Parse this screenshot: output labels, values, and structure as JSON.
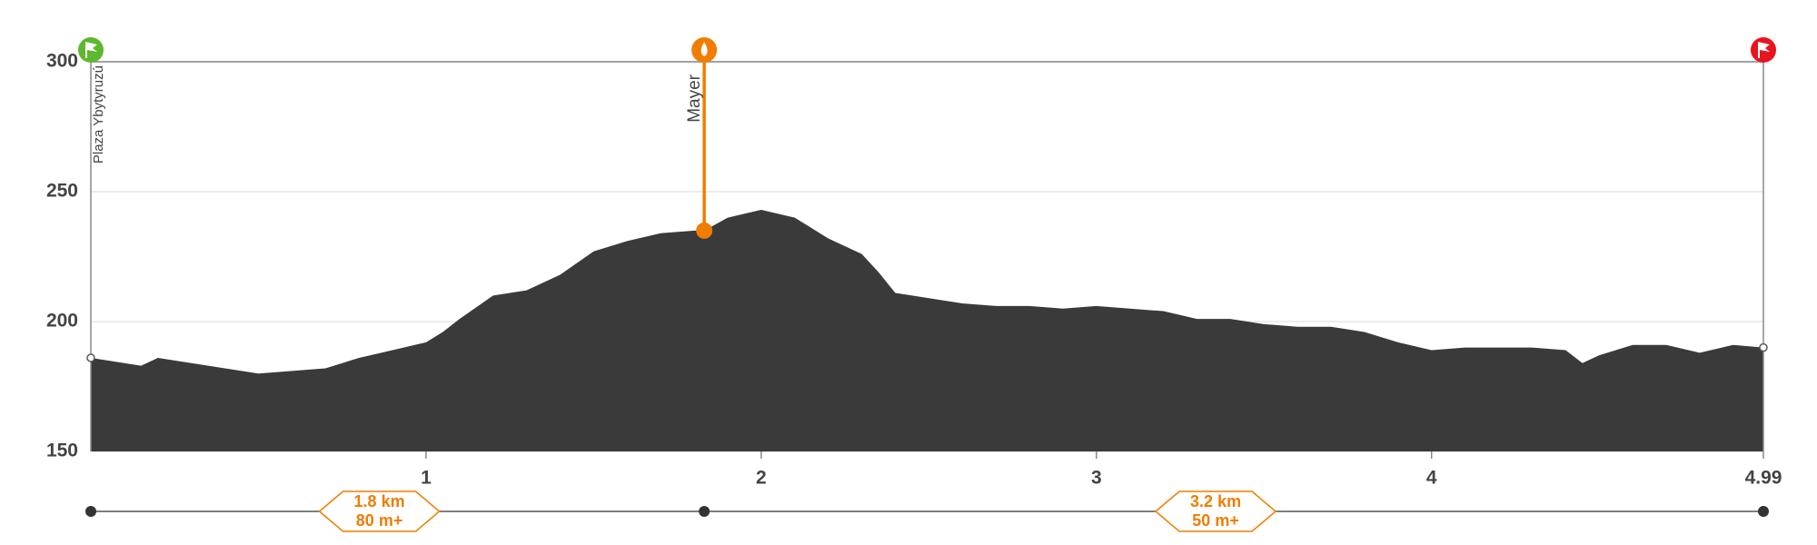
{
  "chart_data": {
    "type": "area",
    "x": [
      0,
      0.1,
      0.15,
      0.2,
      0.3,
      0.4,
      0.5,
      0.6,
      0.7,
      0.8,
      0.9,
      1.0,
      1.05,
      1.1,
      1.2,
      1.3,
      1.4,
      1.5,
      1.6,
      1.7,
      1.8,
      1.83,
      1.9,
      2.0,
      2.1,
      2.2,
      2.3,
      2.35,
      2.4,
      2.5,
      2.6,
      2.7,
      2.8,
      2.9,
      3.0,
      3.1,
      3.2,
      3.3,
      3.4,
      3.5,
      3.6,
      3.7,
      3.8,
      3.9,
      4.0,
      4.1,
      4.2,
      4.3,
      4.4,
      4.45,
      4.5,
      4.6,
      4.7,
      4.8,
      4.9,
      4.99
    ],
    "values": [
      186,
      184,
      183,
      186,
      184,
      182,
      180,
      181,
      182,
      186,
      189,
      192,
      196,
      201,
      210,
      212,
      218,
      227,
      231,
      234,
      235,
      235,
      240,
      243,
      240,
      232,
      226,
      219,
      211,
      209,
      207,
      206,
      206,
      205,
      206,
      205,
      204,
      201,
      201,
      199,
      198,
      198,
      196,
      192,
      189,
      190,
      190,
      190,
      189,
      184,
      187,
      191,
      191,
      188,
      191,
      190
    ],
    "color": "#3a3a3a",
    "xlim": [
      0,
      4.99
    ],
    "ylim": [
      150,
      300
    ],
    "xticks": [
      1,
      2,
      3,
      4,
      4.99
    ],
    "yticks": [
      150,
      200,
      250,
      300
    ],
    "grid": true,
    "waypoints": [
      {
        "name": "Plaza Ybytyruzú",
        "x": 0,
        "elevation": 186,
        "color": "#5cb82e"
      },
      {
        "name": "Mayer",
        "x": 1.83,
        "elevation": 235,
        "color": "#f07d00"
      },
      {
        "x": 4.99,
        "elevation": 190,
        "color": "#e8141e"
      }
    ],
    "segments": [
      {
        "distance": "1.8 km",
        "gain": "80 m+"
      },
      {
        "distance": "3.2 km",
        "gain": "50 m+"
      }
    ]
  }
}
